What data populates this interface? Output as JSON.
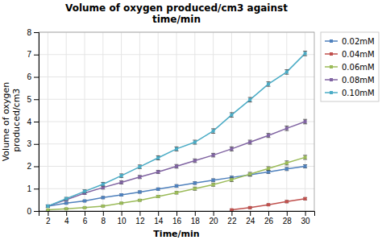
{
  "chart_data": {
    "type": "line",
    "title": "Volume of oxygen produced/cm3 against\ntime/min",
    "x_label": "Time/min",
    "y_label": "Volume of oxygen\n produced/cm3",
    "xlim": [
      1,
      31
    ],
    "ylim": [
      0,
      8
    ],
    "xticks": [
      2,
      4,
      6,
      8,
      10,
      12,
      14,
      16,
      18,
      20,
      22,
      24,
      26,
      28,
      30
    ],
    "yticks": [
      0,
      1,
      2,
      3,
      4,
      5,
      6,
      7,
      8
    ],
    "grid": true,
    "legend": "right",
    "marker": "square",
    "line_style": "solid",
    "series": [
      {
        "name": "0.02mM",
        "color": "#4F81BD",
        "x": [
          2,
          4,
          6,
          8,
          10,
          12,
          14,
          16,
          18,
          20,
          22,
          24,
          26,
          28,
          30
        ],
        "values": [
          0.22,
          0.35,
          0.45,
          0.6,
          0.72,
          0.85,
          0.98,
          1.12,
          1.25,
          1.38,
          1.5,
          1.62,
          1.75,
          1.88,
          2.0
        ],
        "errors": [
          0.04,
          0.04,
          0.04,
          0.05,
          0.05,
          0.05,
          0.05,
          0.06,
          0.06,
          0.06,
          0.06,
          0.06,
          0.07,
          0.07,
          0.07
        ]
      },
      {
        "name": "0.04mM",
        "color": "#C0504D",
        "x": [
          22,
          24,
          26,
          28,
          30
        ],
        "values": [
          0.05,
          0.15,
          0.28,
          0.42,
          0.55
        ],
        "errors": [
          0.03,
          0.04,
          0.04,
          0.05,
          0.05
        ]
      },
      {
        "name": "0.06mM",
        "color": "#9BBB59",
        "x": [
          2,
          4,
          6,
          8,
          10,
          12,
          14,
          16,
          18,
          20,
          22,
          24,
          26,
          28,
          30
        ],
        "values": [
          0.05,
          0.1,
          0.15,
          0.22,
          0.35,
          0.48,
          0.65,
          0.82,
          1.0,
          1.18,
          1.4,
          1.65,
          1.9,
          2.15,
          2.4
        ],
        "errors": [
          0.03,
          0.03,
          0.03,
          0.04,
          0.04,
          0.04,
          0.05,
          0.06,
          0.07,
          0.07,
          0.08,
          0.08,
          0.08,
          0.09,
          0.09
        ]
      },
      {
        "name": "0.08mM",
        "color": "#8064A2",
        "x": [
          2,
          4,
          6,
          8,
          10,
          12,
          14,
          16,
          18,
          20,
          22,
          24,
          26,
          28,
          30
        ],
        "values": [
          0.22,
          0.5,
          0.8,
          1.05,
          1.28,
          1.52,
          1.75,
          2.0,
          2.25,
          2.5,
          2.78,
          3.08,
          3.38,
          3.7,
          4.0
        ],
        "errors": [
          0.05,
          0.05,
          0.06,
          0.07,
          0.07,
          0.07,
          0.07,
          0.08,
          0.08,
          0.08,
          0.09,
          0.09,
          0.09,
          0.1,
          0.1
        ]
      },
      {
        "name": "0.10mM",
        "color": "#4BACC6",
        "x": [
          2,
          4,
          6,
          8,
          10,
          12,
          14,
          16,
          18,
          20,
          22,
          24,
          26,
          28,
          30
        ],
        "values": [
          0.22,
          0.55,
          0.88,
          1.2,
          1.58,
          1.98,
          2.38,
          2.78,
          3.08,
          3.58,
          4.3,
          4.98,
          5.68,
          6.22,
          7.05
        ],
        "errors": [
          0.05,
          0.06,
          0.07,
          0.08,
          0.08,
          0.08,
          0.09,
          0.09,
          0.09,
          0.1,
          0.1,
          0.1,
          0.1,
          0.1,
          0.1
        ]
      }
    ]
  }
}
